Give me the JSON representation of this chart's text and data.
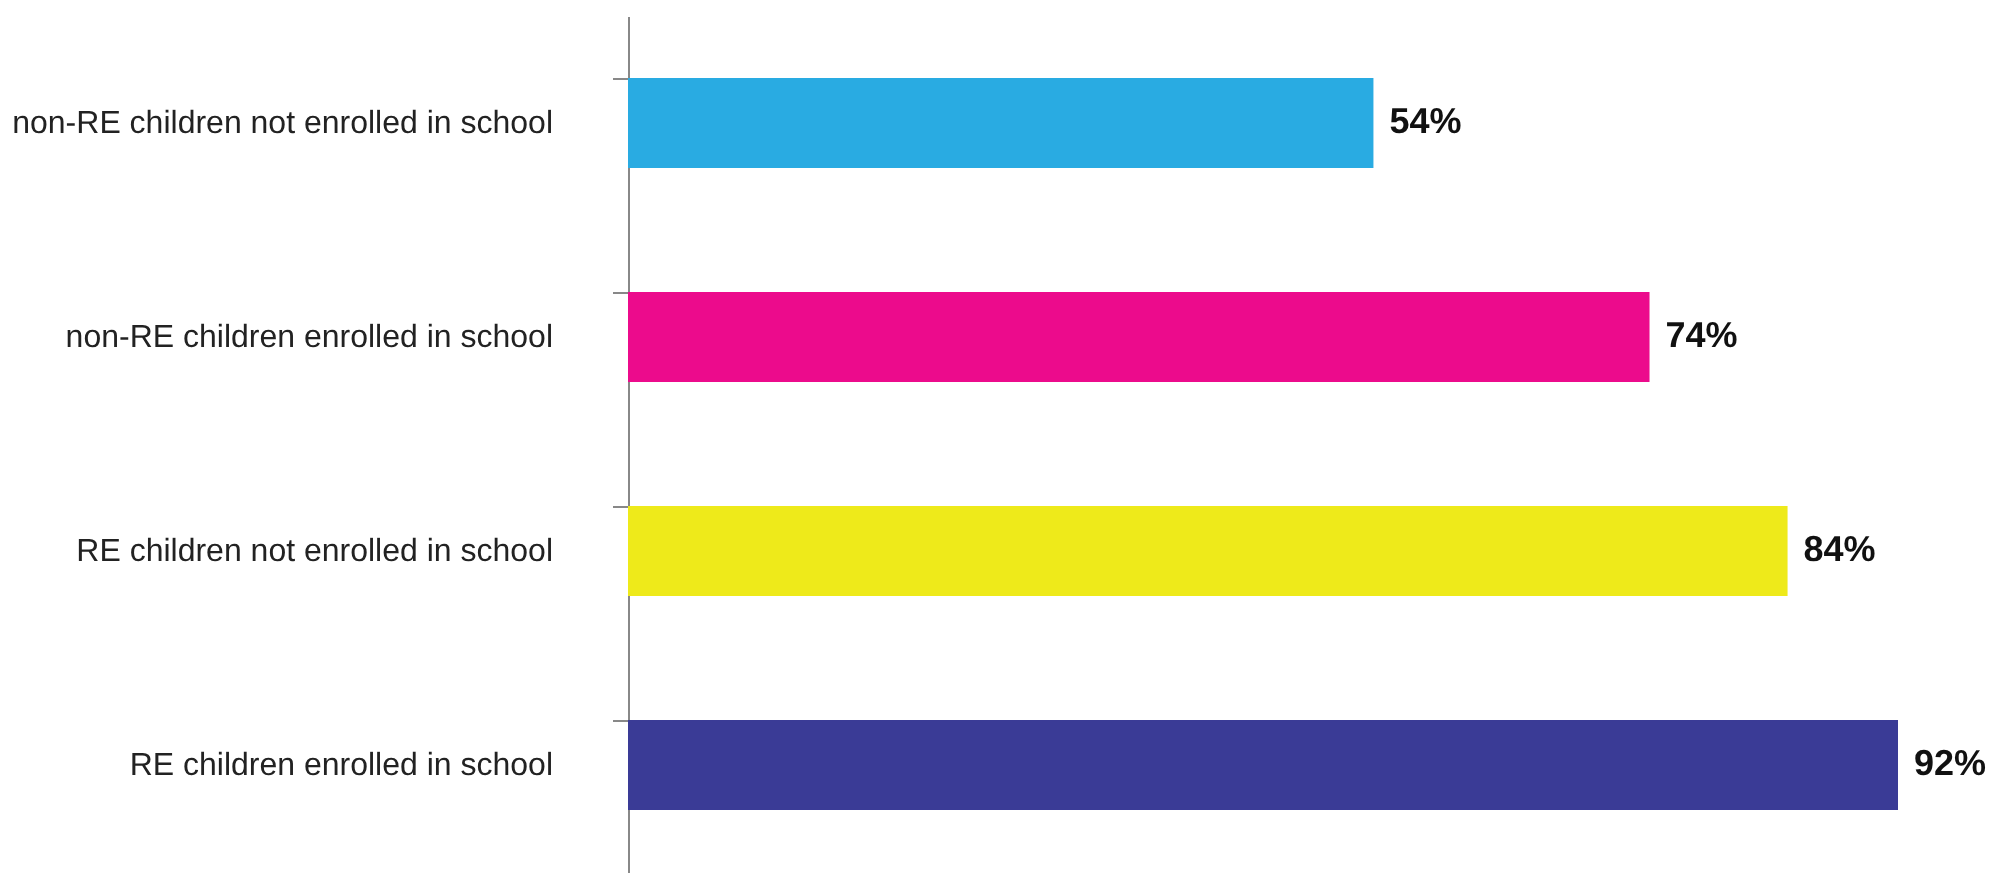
{
  "chart_data": {
    "type": "bar",
    "orientation": "horizontal",
    "categories": [
      "non-RE children not enrolled in school",
      "non-RE children enrolled in school",
      "RE children not enrolled in school",
      "RE children enrolled in school"
    ],
    "values": [
      54,
      74,
      84,
      92
    ],
    "colors": [
      "#29abe2",
      "#ec0b8c",
      "#eeea1a",
      "#3a3b96"
    ],
    "value_labels": [
      "54%",
      "74%",
      "84%",
      "92%"
    ],
    "tick_labels": "y"
  }
}
